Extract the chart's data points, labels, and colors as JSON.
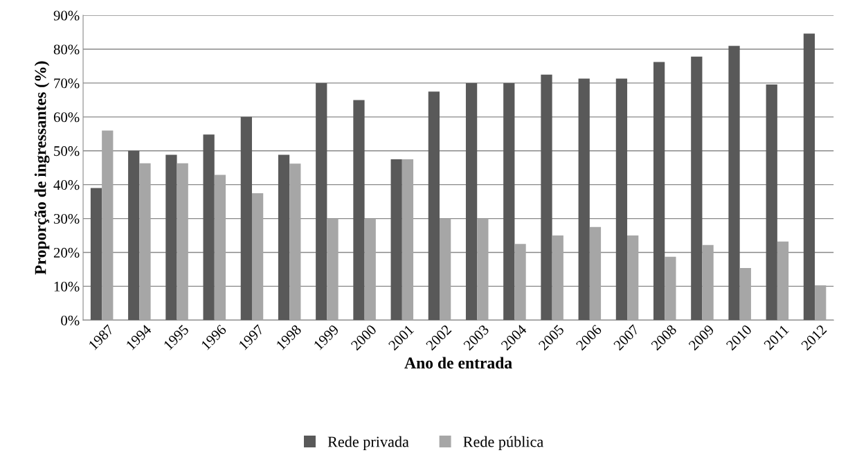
{
  "chart_data": {
    "type": "bar",
    "xlabel": "Ano de entrada",
    "ylabel": "Proporção de ingressantes (%)",
    "categories": [
      "1987",
      "1994",
      "1995",
      "1996",
      "1997",
      "1998",
      "1999",
      "2000",
      "2001",
      "2002",
      "2003",
      "2004",
      "2005",
      "2006",
      "2007",
      "2008",
      "2009",
      "2010",
      "2011",
      "2012"
    ],
    "series": [
      {
        "name": "Rede privada",
        "color": "#595959",
        "values": [
          39,
          50,
          48.8,
          54.8,
          60,
          48.8,
          70,
          65,
          47.5,
          67.5,
          70,
          70,
          72.5,
          71.3,
          71.3,
          76.2,
          77.8,
          81,
          69.6,
          84.6
        ]
      },
      {
        "name": "Rede pública",
        "color": "#a6a6a6",
        "values": [
          56,
          46.3,
          46.3,
          42.9,
          37.5,
          46.2,
          30,
          30,
          47.5,
          30,
          30,
          22.5,
          25,
          27.5,
          25,
          18.7,
          22.2,
          15.4,
          23.2,
          10.3
        ]
      }
    ],
    "ylim": [
      0,
      90
    ],
    "yticks": [
      {
        "value": 0,
        "label": "0%"
      },
      {
        "value": 10,
        "label": "10%"
      },
      {
        "value": 20,
        "label": "20%"
      },
      {
        "value": 30,
        "label": "30%"
      },
      {
        "value": 40,
        "label": "40%"
      },
      {
        "value": 50,
        "label": "50%"
      },
      {
        "value": 60,
        "label": "60%"
      },
      {
        "value": 70,
        "label": "70%"
      },
      {
        "value": 80,
        "label": "80%"
      },
      {
        "value": 90,
        "label": "90%"
      }
    ],
    "grid": "y",
    "legend": "bottom"
  }
}
